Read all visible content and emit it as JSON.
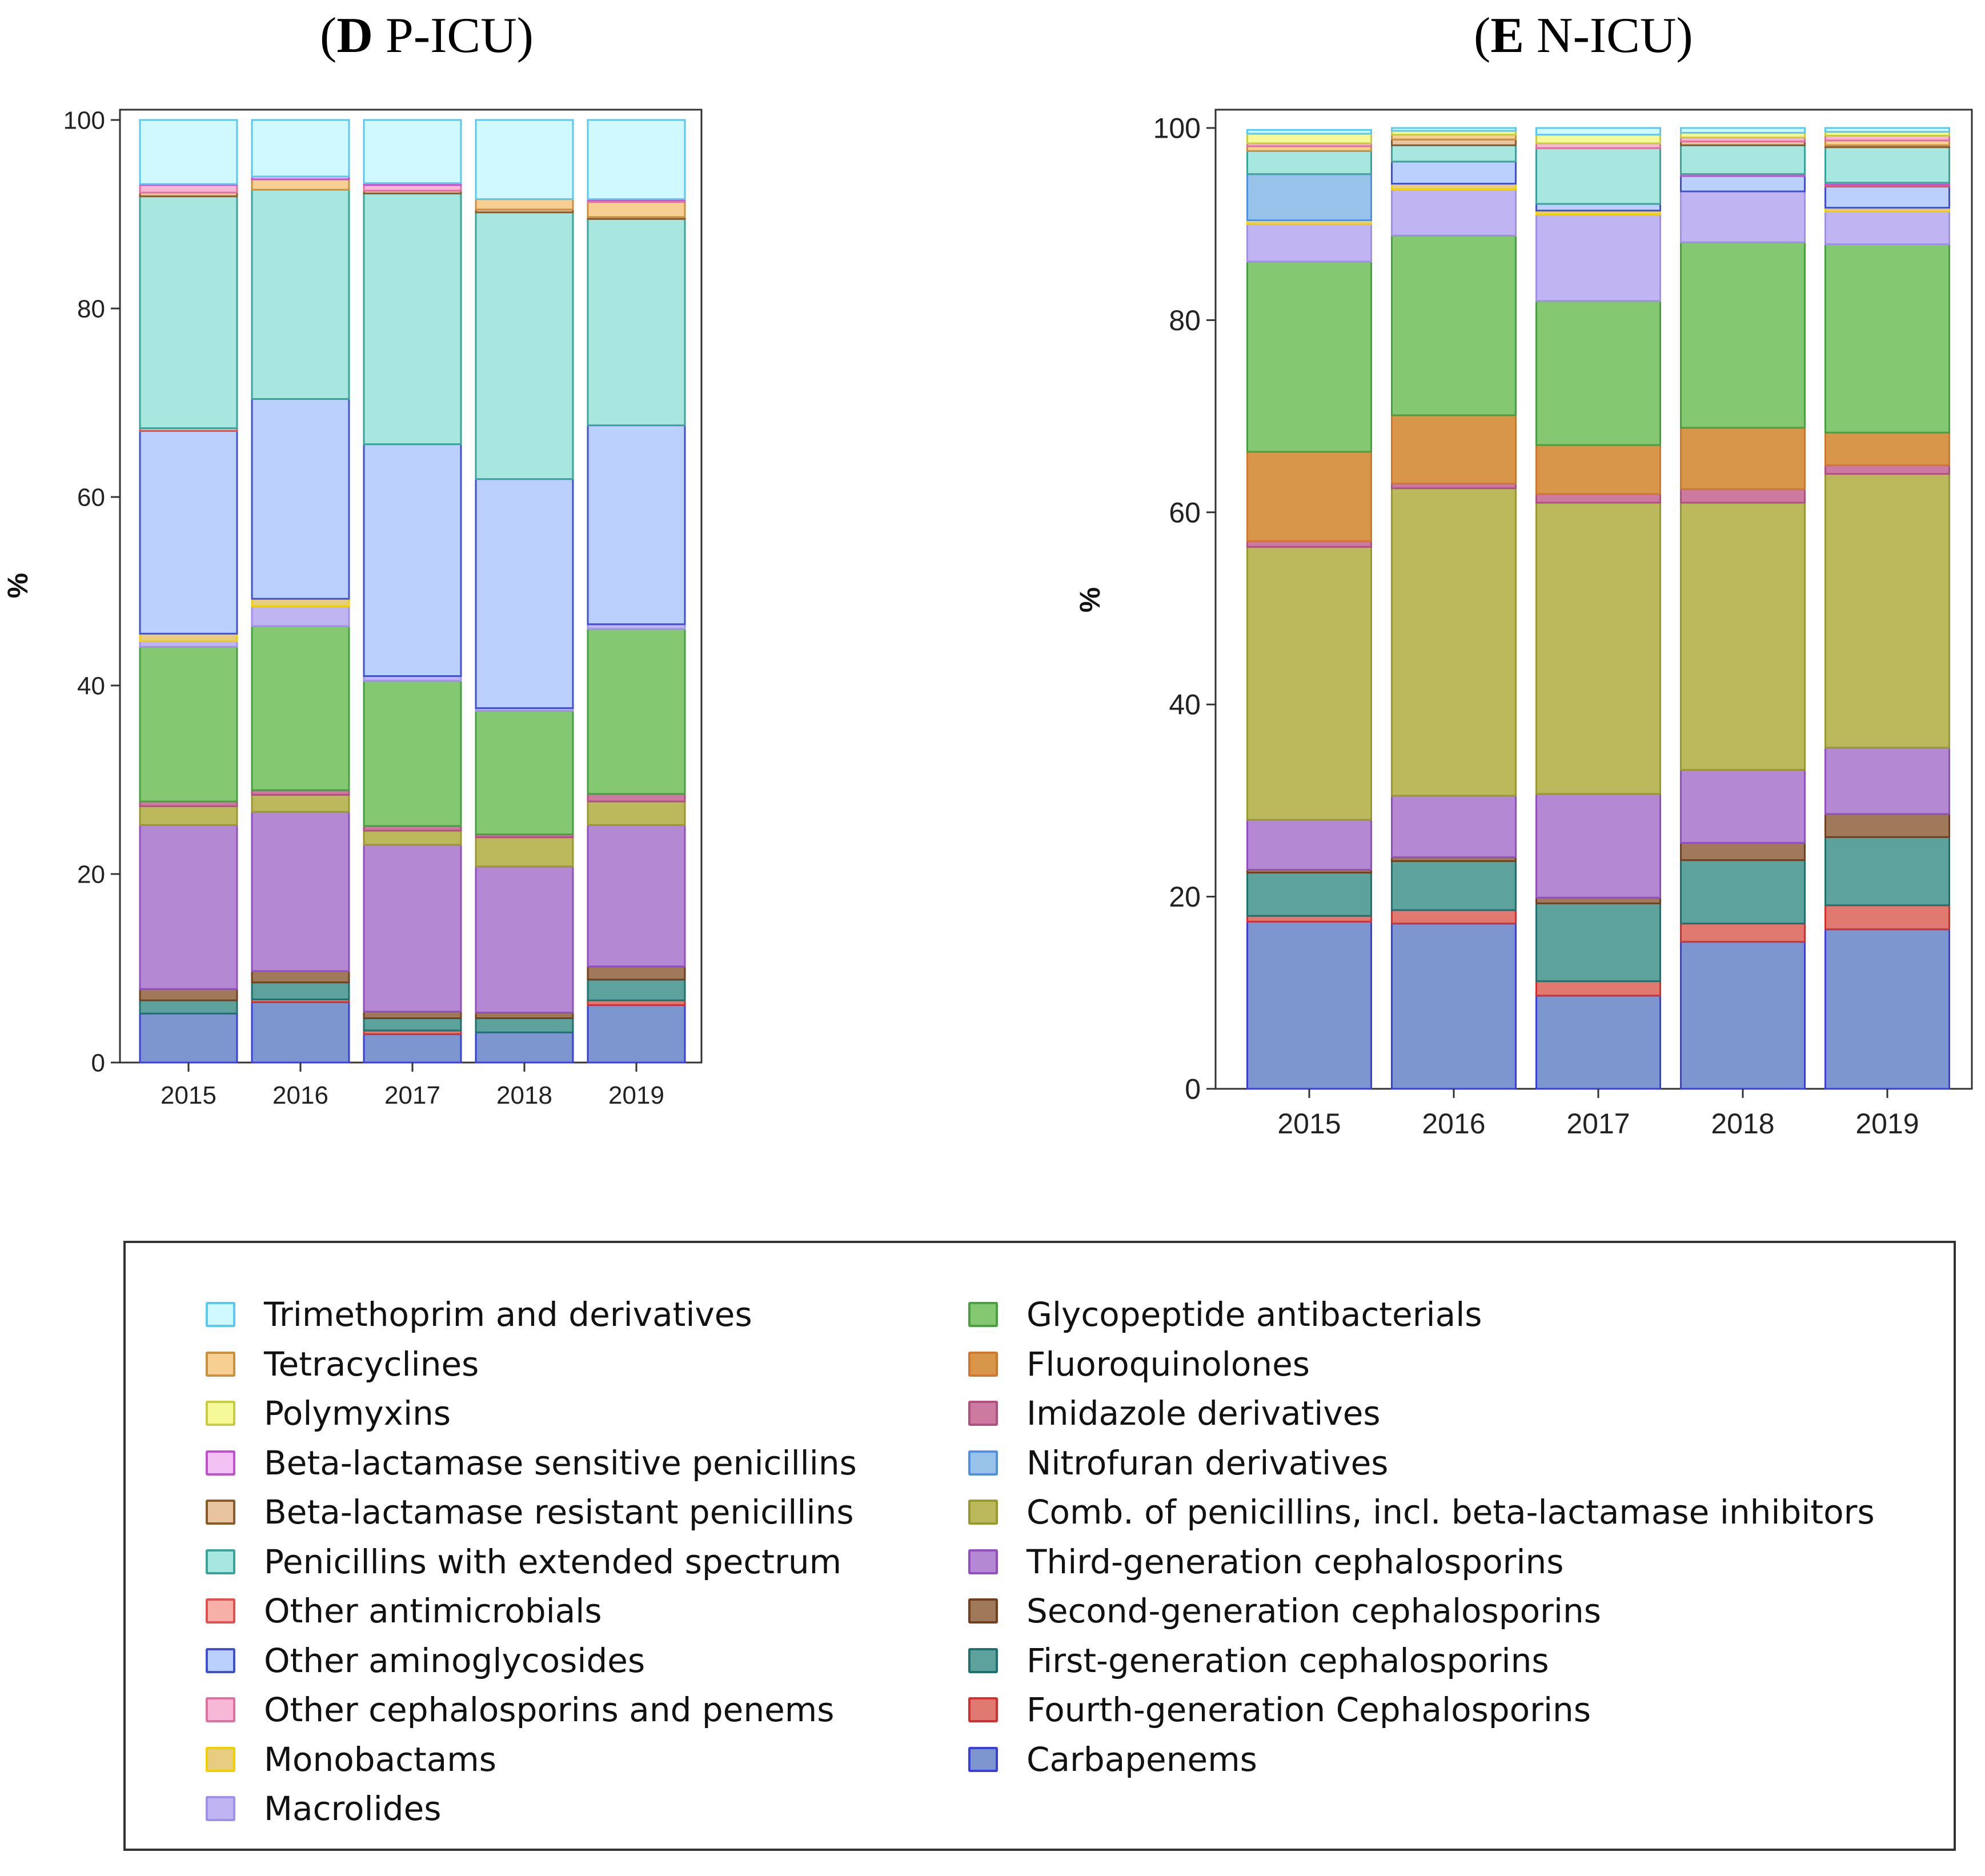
{
  "palette": {
    "Trimethoprim and derivatives": {
      "fill": "#cff8ff",
      "stroke": "#5ac8f0"
    },
    "Tetracyclines": {
      "fill": "#f7cf92",
      "stroke": "#c89040"
    },
    "Polymyxins": {
      "fill": "#f6f99a",
      "stroke": "#c8cc40"
    },
    "Beta-lactamase sensitive penicillins": {
      "fill": "#f3c0f3",
      "stroke": "#c050d0"
    },
    "Beta-lactamase resistant penicillins": {
      "fill": "#e8c4a0",
      "stroke": "#8b5a2b"
    },
    "Penicillins with extended spectrum": {
      "fill": "#a8e6e0",
      "stroke": "#3aa49a"
    },
    "Other antimicrobials": {
      "fill": "#f7b0a8",
      "stroke": "#e05050"
    },
    "Other aminoglycosides": {
      "fill": "#bcd0fd",
      "stroke": "#4050d0"
    },
    "Other cephalosporins and penems": {
      "fill": "#f7b8d8",
      "stroke": "#e070a0"
    },
    "Monobactams": {
      "fill": "#e8cc80",
      "stroke": "#f0d000"
    },
    "Macrolides": {
      "fill": "#c0b4f2",
      "stroke": "#a090e8"
    },
    "Glycopeptide antibacterials": {
      "fill": "#84c872",
      "stroke": "#48a040"
    },
    "Fluoroquinolones": {
      "fill": "#d8964a",
      "stroke": "#d07830"
    },
    "Imidazole derivatives": {
      "fill": "#cc7aa0",
      "stroke": "#b05080"
    },
    "Nitrofuran derivatives": {
      "fill": "#98c2ea",
      "stroke": "#5090e0"
    },
    "Comb. of penicillins, incl. beta-lactamase inhibitors": {
      "fill": "#bcb85c",
      "stroke": "#989a30"
    },
    "Third-generation cephalosporins": {
      "fill": "#b488d2",
      "stroke": "#9050c0"
    },
    "Second-generation cephalosporins": {
      "fill": "#a0785a",
      "stroke": "#704020"
    },
    "First-generation cephalosporins": {
      "fill": "#5ea29e",
      "stroke": "#207070"
    },
    "Fourth-generation Cephalosporins": {
      "fill": "#e07a70",
      "stroke": "#d03030"
    },
    "Carbapenems": {
      "fill": "#7e96d0",
      "stroke": "#3a40d8"
    }
  },
  "legend": {
    "left": [
      "Trimethoprim and derivatives",
      "Tetracyclines",
      "Polymyxins",
      "Beta-lactamase sensitive penicillins",
      "Beta-lactamase resistant penicillins",
      "Penicillins with extended spectrum",
      "Other antimicrobials",
      "Other aminoglycosides",
      "Other cephalosporins and penems",
      "Monobactams",
      "Macrolides"
    ],
    "right": [
      "Glycopeptide antibacterials",
      "Fluoroquinolones",
      "Imidazole derivatives",
      "Nitrofuran derivatives",
      "Comb. of penicillins, incl. beta-lactamase inhibitors",
      "Third-generation cephalosporins",
      "Second-generation cephalosporins",
      "First-generation cephalosporins",
      "Fourth-generation Cephalosporins",
      "Carbapenems"
    ]
  },
  "chart_data": [
    {
      "type": "bar",
      "stacked": true,
      "title_letter": "D",
      "title_rest": " P-ICU",
      "ylabel": "%",
      "ylim": [
        0,
        100
      ],
      "yticks": [
        0,
        20,
        40,
        60,
        80,
        100
      ],
      "categories": [
        "2015",
        "2016",
        "2017",
        "2018",
        "2019"
      ],
      "series": [
        {
          "name": "Carbapenems",
          "values": [
            5.2,
            6.4,
            3.0,
            3.2,
            6.1
          ]
        },
        {
          "name": "Fourth-generation Cephalosporins",
          "values": [
            0.0,
            0.3,
            0.4,
            0.0,
            0.5
          ]
        },
        {
          "name": "First-generation cephalosporins",
          "values": [
            1.4,
            1.8,
            1.3,
            1.5,
            2.2
          ]
        },
        {
          "name": "Second-generation cephalosporins",
          "values": [
            1.2,
            1.2,
            0.7,
            0.6,
            1.4
          ]
        },
        {
          "name": "Third-generation cephalosporins",
          "values": [
            17.4,
            16.9,
            17.7,
            15.5,
            15.0
          ]
        },
        {
          "name": "Comb. of penicillins, incl. beta-lactamase inhibitors",
          "values": [
            2.0,
            1.8,
            1.5,
            3.1,
            2.5
          ]
        },
        {
          "name": "Imidazole derivatives",
          "values": [
            0.5,
            0.5,
            0.5,
            0.3,
            0.8
          ]
        },
        {
          "name": "Glycopeptide antibacterials",
          "values": [
            16.4,
            17.4,
            15.4,
            13.1,
            17.5
          ]
        },
        {
          "name": "Macrolides",
          "values": [
            0.6,
            2.1,
            0.5,
            0.3,
            0.5
          ]
        },
        {
          "name": "Monobactams",
          "values": [
            0.8,
            0.8,
            0.0,
            0.0,
            0.0
          ]
        },
        {
          "name": "Other aminoglycosides",
          "values": [
            21.5,
            21.2,
            24.6,
            24.3,
            21.1
          ]
        },
        {
          "name": "Other antimicrobials",
          "values": [
            0.3,
            0.0,
            0.0,
            0.0,
            0.0
          ]
        },
        {
          "name": "Penicillins with extended spectrum",
          "values": [
            24.6,
            22.2,
            26.6,
            28.3,
            21.9
          ]
        },
        {
          "name": "Beta-lactamase resistant penicillins",
          "values": [
            0.4,
            0.0,
            0.3,
            0.3,
            0.2
          ]
        },
        {
          "name": "Tetracyclines",
          "values": [
            0.0,
            1.1,
            0.0,
            1.1,
            1.6
          ]
        },
        {
          "name": "Other cephalosporins and penems",
          "values": [
            0.8,
            0.0,
            0.6,
            0.0,
            0.2
          ]
        },
        {
          "name": "Beta-lactamase sensitive penicillins",
          "values": [
            0.1,
            0.3,
            0.2,
            0.0,
            0.1
          ]
        },
        {
          "name": "Trimethoprim and derivatives",
          "values": [
            6.8,
            6.0,
            6.7,
            8.4,
            8.4
          ]
        }
      ]
    },
    {
      "type": "bar",
      "stacked": true,
      "title_letter": "E",
      "title_rest": " N-ICU",
      "ylabel": "%",
      "ylim": [
        0,
        100
      ],
      "yticks": [
        0,
        20,
        40,
        60,
        80,
        100
      ],
      "categories": [
        "2015",
        "2016",
        "2017",
        "2018",
        "2019"
      ],
      "series": [
        {
          "name": "Carbapenems",
          "values": [
            17.4,
            17.2,
            9.7,
            15.3,
            16.6
          ]
        },
        {
          "name": "Fourth-generation Cephalosporins",
          "values": [
            0.6,
            1.4,
            1.5,
            1.9,
            2.5
          ]
        },
        {
          "name": "First-generation cephalosporins",
          "values": [
            4.5,
            5.1,
            8.1,
            6.6,
            7.1
          ]
        },
        {
          "name": "Second-generation cephalosporins",
          "values": [
            0.3,
            0.4,
            0.6,
            1.8,
            2.4
          ]
        },
        {
          "name": "Third-generation cephalosporins",
          "values": [
            5.2,
            6.4,
            10.8,
            7.6,
            6.9
          ]
        },
        {
          "name": "Comb. of penicillins, incl. beta-lactamase inhibitors",
          "values": [
            28.4,
            32.0,
            30.3,
            27.8,
            28.5
          ]
        },
        {
          "name": "Imidazole derivatives",
          "values": [
            0.6,
            0.5,
            0.9,
            1.4,
            0.9
          ]
        },
        {
          "name": "Fluoroquinolones",
          "values": [
            9.3,
            7.1,
            5.1,
            6.4,
            3.4
          ]
        },
        {
          "name": "Glycopeptide antibacterials",
          "values": [
            19.8,
            18.7,
            15.0,
            19.3,
            19.6
          ]
        },
        {
          "name": "Macrolides",
          "values": [
            3.9,
            4.8,
            9.0,
            5.3,
            3.4
          ]
        },
        {
          "name": "Monobactams",
          "values": [
            0.4,
            0.6,
            0.4,
            0.0,
            0.4
          ]
        },
        {
          "name": "Nitrofuran derivatives",
          "values": [
            4.8,
            0.0,
            0.0,
            0.0,
            0.0
          ]
        },
        {
          "name": "Other aminoglycosides",
          "values": [
            0.0,
            2.3,
            0.7,
            1.6,
            2.2
          ]
        },
        {
          "name": "Other antimicrobials",
          "values": [
            0.0,
            0.0,
            0.0,
            0.0,
            0.2
          ]
        },
        {
          "name": "Beta-lactamase sensitive penicillins",
          "values": [
            0.0,
            0.0,
            0.0,
            0.2,
            0.2
          ]
        },
        {
          "name": "Penicillins with extended spectrum",
          "values": [
            2.4,
            1.7,
            5.8,
            3.0,
            3.7
          ]
        },
        {
          "name": "Beta-lactamase resistant penicillins",
          "values": [
            0.0,
            0.6,
            0.0,
            0.4,
            0.2
          ]
        },
        {
          "name": "Tetracyclines",
          "values": [
            0.5,
            0.5,
            0.0,
            0.0,
            0.5
          ]
        },
        {
          "name": "Other cephalosporins and penems",
          "values": [
            0.3,
            0.0,
            0.5,
            0.4,
            0.5
          ]
        },
        {
          "name": "Polymyxins",
          "values": [
            1.0,
            0.4,
            0.9,
            0.5,
            0.4
          ]
        },
        {
          "name": "Trimethoprim and derivatives",
          "values": [
            0.4,
            0.3,
            0.7,
            0.5,
            0.4
          ]
        }
      ]
    }
  ]
}
